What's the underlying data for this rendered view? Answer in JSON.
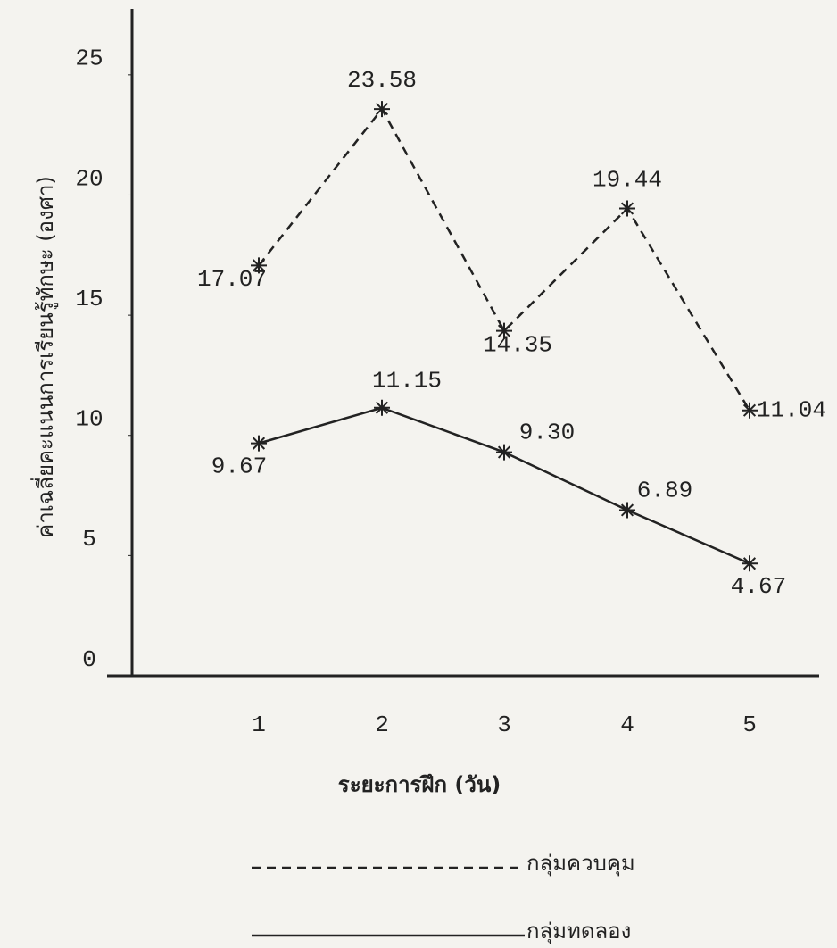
{
  "chart_data": {
    "type": "line",
    "y_label": "ค่าเฉลี่ยคะแนนการเรียนรู้ทักษะ (องศา)",
    "x_label": "ระยะการฝึก (วัน)",
    "categories": [
      "1",
      "2",
      "3",
      "4",
      "5"
    ],
    "series": [
      {
        "name": "กลุ่มควบคุม",
        "color": "#222222",
        "dash": true,
        "values": [
          17.07,
          23.58,
          14.35,
          19.44,
          11.04
        ],
        "value_labels": [
          "17.07",
          "23.58",
          "14.35",
          "19.44",
          "11.04"
        ]
      },
      {
        "name": "กลุ่มทดลอง",
        "color": "#222222",
        "dash": false,
        "values": [
          9.67,
          11.15,
          9.3,
          6.89,
          4.67
        ],
        "value_labels": [
          "9.67",
          "11.15",
          "9.30",
          "6.89",
          "4.67"
        ]
      }
    ],
    "ylim": [
      0,
      27
    ],
    "yticks": [
      0,
      5,
      10,
      15,
      20,
      25
    ],
    "grid": false
  }
}
